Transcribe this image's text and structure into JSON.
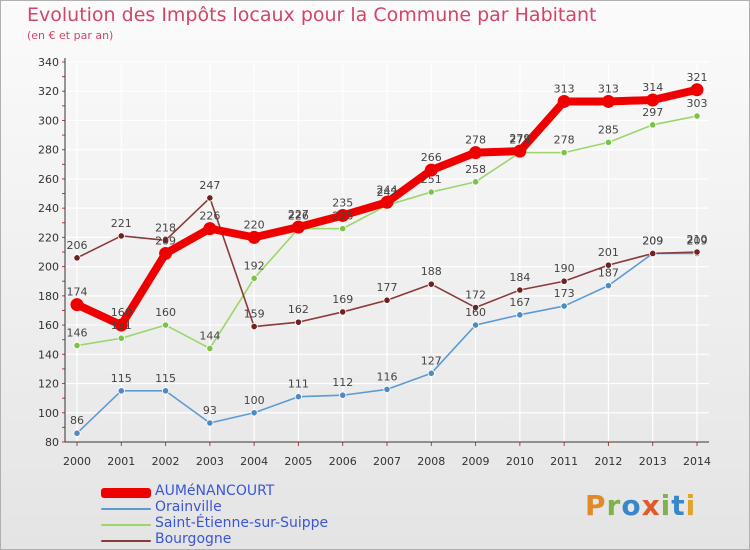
{
  "chart_data": {
    "type": "line",
    "title": "Evolution des Impôts locaux pour la Commune par Habitant",
    "subtitle": "(en € et par an)",
    "xlabel": "",
    "ylabel": "",
    "ylim": [
      80,
      340
    ],
    "yticks": [
      80,
      100,
      120,
      140,
      160,
      180,
      200,
      220,
      240,
      260,
      280,
      300,
      320,
      340
    ],
    "grid": true,
    "legend_position": "bottom-left",
    "x": [
      "2000",
      "2001",
      "2002",
      "2003",
      "2004",
      "2005",
      "2006",
      "2007",
      "2008",
      "2009",
      "2010",
      "2011",
      "2012",
      "2013",
      "2014"
    ],
    "series": [
      {
        "name": "Orainville",
        "color": "#5b9bd5",
        "marker": "#4f8ac2",
        "values": [
          86,
          115,
          115,
          93,
          100,
          111,
          112,
          116,
          127,
          160,
          167,
          173,
          187,
          209,
          209
        ],
        "labels": [
          "86",
          "115",
          "115",
          "93",
          "100",
          "111",
          "112",
          "116",
          "127",
          "160",
          "167",
          "173",
          "187",
          "209",
          "209"
        ]
      },
      {
        "name": "Saint-Étienne-sur-Suippe",
        "color": "#9ad66c",
        "marker": "#7cc247",
        "values": [
          146,
          151,
          160,
          144,
          192,
          226,
          226,
          242,
          251,
          258,
          278,
          278,
          285,
          297,
          303
        ],
        "labels": [
          "146",
          "151",
          "160",
          "144",
          "192",
          "226",
          "226",
          "242",
          "251",
          "258",
          "278",
          "278",
          "285",
          "297",
          "303"
        ]
      },
      {
        "name": "Bourgogne",
        "color": "#8b3a3a",
        "marker": "#6e2222",
        "values": [
          206,
          221,
          218,
          247,
          159,
          162,
          169,
          177,
          188,
          172,
          184,
          190,
          201,
          209,
          210
        ],
        "labels": [
          "206",
          "221",
          "218",
          "247",
          "159",
          "162",
          "169",
          "177",
          "188",
          "172",
          "184",
          "190",
          "201",
          "209",
          "210"
        ]
      },
      {
        "name": "AUMéNANCOURT",
        "color": "#ee0000",
        "marker": "#ee0000",
        "values": [
          174,
          160,
          209,
          226,
          220,
          227,
          235,
          244,
          266,
          278,
          279,
          313,
          313,
          314,
          321
        ],
        "labels": [
          "174",
          "160",
          "209",
          "226",
          "220",
          "227",
          "235",
          "244",
          "266",
          "278",
          "279",
          "313",
          "313",
          "314",
          "321"
        ]
      }
    ]
  },
  "legend": {
    "items": [
      {
        "label": "AUMéNANCOURT",
        "color": "#ee0000",
        "thick": true
      },
      {
        "label": "Orainville",
        "color": "#5b9bd5",
        "thick": false
      },
      {
        "label": "Saint-Étienne-sur-Suippe",
        "color": "#9ad66c",
        "thick": false
      },
      {
        "label": "Bourgogne",
        "color": "#8b3a3a",
        "thick": false
      }
    ]
  },
  "logo": {
    "text": "Proxiti"
  }
}
